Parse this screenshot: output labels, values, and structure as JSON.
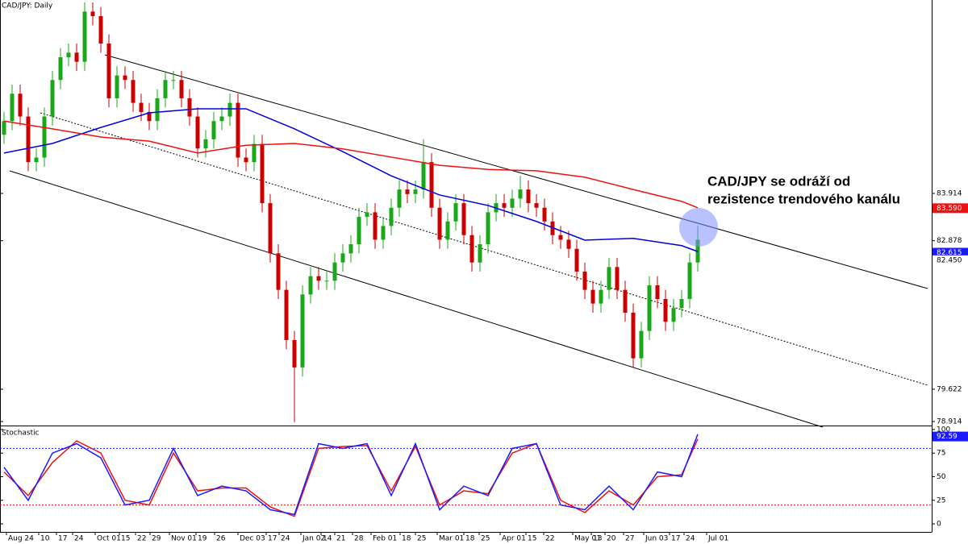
{
  "chart_data": [
    {
      "type": "candlestick",
      "title": "CAD/JPY: Daily",
      "open": [
        85.2,
        85.5,
        86.1,
        85.6,
        84.6,
        84.7,
        85.6,
        86.4,
        86.9,
        87.0,
        86.8,
        87.9,
        87.8,
        87.2,
        86.0,
        86.5,
        86.4,
        85.9,
        85.7,
        85.5,
        86.0,
        86.4,
        86.4,
        86.0,
        85.6,
        84.9,
        85.1,
        85.5,
        85.6,
        85.9,
        84.7,
        84.6,
        85.0,
        83.7,
        82.6,
        81.8,
        80.7,
        80.1,
        81.7,
        82.1,
        82.0,
        82.0,
        82.4,
        82.6,
        82.8,
        83.4,
        83.5,
        82.9,
        83.2,
        83.6,
        84.0,
        83.9,
        84.0,
        84.6,
        83.6,
        82.9,
        83.3,
        83.7,
        83.0,
        82.4,
        82.8,
        83.5,
        83.7,
        83.6,
        83.8,
        84.0,
        83.7,
        83.6,
        83.3,
        83.0,
        82.9,
        82.7,
        82.2,
        81.8,
        81.5,
        81.8,
        82.3,
        81.8,
        81.3,
        80.3,
        80.9,
        81.9,
        81.6,
        81.1,
        81.4,
        81.6,
        82.4
      ],
      "high": [
        85.7,
        86.3,
        86.3,
        85.8,
        84.9,
        85.8,
        86.6,
        87.1,
        87.2,
        87.2,
        88.1,
        88.1,
        88.0,
        87.4,
        86.7,
        86.7,
        86.6,
        86.1,
        85.9,
        86.2,
        86.6,
        86.6,
        86.6,
        86.2,
        85.8,
        85.3,
        85.7,
        85.8,
        86.1,
        86.1,
        84.9,
        85.2,
        85.2,
        83.9,
        82.8,
        82.0,
        80.9,
        81.9,
        82.3,
        82.3,
        82.2,
        82.6,
        82.8,
        83.0,
        83.6,
        83.7,
        83.7,
        83.4,
        83.8,
        84.2,
        84.2,
        84.2,
        85.1,
        84.8,
        83.8,
        83.5,
        83.9,
        83.9,
        83.2,
        83.0,
        83.7,
        83.9,
        83.9,
        84.0,
        84.3,
        84.2,
        83.9,
        83.8,
        83.5,
        83.2,
        83.1,
        82.9,
        82.4,
        82.0,
        82.0,
        82.5,
        82.5,
        82.0,
        81.5,
        81.1,
        82.1,
        82.1,
        81.8,
        81.6,
        81.8,
        82.6,
        83.2
      ],
      "low": [
        85.0,
        85.3,
        85.4,
        84.4,
        84.4,
        84.5,
        85.4,
        86.2,
        86.7,
        86.6,
        86.6,
        87.6,
        87.0,
        85.8,
        85.8,
        86.2,
        85.7,
        85.5,
        85.3,
        85.3,
        85.8,
        86.2,
        85.8,
        85.4,
        84.7,
        84.7,
        84.9,
        85.3,
        85.4,
        84.5,
        84.4,
        84.4,
        83.5,
        82.4,
        81.6,
        80.5,
        78.9,
        79.9,
        81.5,
        81.8,
        81.8,
        81.8,
        82.2,
        82.4,
        82.6,
        83.2,
        82.7,
        82.7,
        83.0,
        83.4,
        83.7,
        83.7,
        83.8,
        83.4,
        82.7,
        82.7,
        83.1,
        82.8,
        82.2,
        82.2,
        82.6,
        83.3,
        83.4,
        83.4,
        83.6,
        83.5,
        83.4,
        83.1,
        82.8,
        82.7,
        82.5,
        82.0,
        81.6,
        81.3,
        81.3,
        81.6,
        81.6,
        81.1,
        80.1,
        80.1,
        80.7,
        81.4,
        80.9,
        80.9,
        81.2,
        81.4,
        82.2
      ],
      "close": [
        85.5,
        86.1,
        85.6,
        84.6,
        84.7,
        85.6,
        86.4,
        86.9,
        87.0,
        86.8,
        87.9,
        87.8,
        87.2,
        86.0,
        86.5,
        86.4,
        85.9,
        85.7,
        85.5,
        86.0,
        86.4,
        86.4,
        86.0,
        85.6,
        84.9,
        85.1,
        85.5,
        85.6,
        85.9,
        84.7,
        84.6,
        85.0,
        83.7,
        82.6,
        81.8,
        80.7,
        80.1,
        81.7,
        82.1,
        82.0,
        82.0,
        82.4,
        82.6,
        82.8,
        83.4,
        83.5,
        82.9,
        83.2,
        83.6,
        84.0,
        83.9,
        84.0,
        84.6,
        83.6,
        82.9,
        83.3,
        83.7,
        83.0,
        82.4,
        82.8,
        83.5,
        83.7,
        83.6,
        83.8,
        84.0,
        83.7,
        83.6,
        83.3,
        83.0,
        82.9,
        82.7,
        82.2,
        81.8,
        81.5,
        81.8,
        82.3,
        81.8,
        81.3,
        80.3,
        80.9,
        81.9,
        81.6,
        81.1,
        81.4,
        81.6,
        82.4,
        82.9
      ],
      "up_color": "#1aa81a",
      "down_color": "#cc0000",
      "series": [
        {
          "color": "#0000dd",
          "x": [
            0,
            6,
            12,
            18,
            24,
            30,
            36,
            42,
            48,
            54,
            60,
            66,
            72,
            78,
            84,
            86
          ],
          "values": [
            84.8,
            85.01,
            85.36,
            85.68,
            85.77,
            85.77,
            85.33,
            84.83,
            84.3,
            83.88,
            83.65,
            83.3,
            82.89,
            82.93,
            82.77,
            82.64
          ]
        },
        {
          "color": "#ee1111",
          "x": [
            0,
            6,
            12,
            18,
            24,
            30,
            36,
            42,
            48,
            54,
            60,
            66,
            72,
            78,
            84,
            86
          ],
          "values": [
            85.5,
            85.33,
            85.15,
            85.06,
            84.8,
            84.97,
            85.01,
            84.89,
            84.71,
            84.53,
            84.44,
            84.41,
            84.27,
            84.0,
            83.74,
            83.6
          ]
        }
      ],
      "ylim": [
        78.826,
        88.154
      ],
      "yticks": [
        78.914,
        79.622,
        82.878,
        83.914
      ],
      "price_tags": [
        {
          "value": 83.59,
          "label": "83.590",
          "color": "#ee1111",
          "text_color": "#ffffff"
        },
        {
          "value": 82.615,
          "label": "82.615",
          "color": "#1a1aff",
          "text_color": "#ffffff"
        },
        {
          "value": 82.45,
          "label": "82.450",
          "color": "#ffffff",
          "text_color": "#000000"
        }
      ],
      "xticks": [
        {
          "value": 0.3,
          "label": "Aug 24"
        },
        {
          "value": 4.3,
          "label": "10"
        },
        {
          "value": 6.5,
          "label": "17"
        },
        {
          "value": 8.5,
          "label": "24"
        },
        {
          "value": 11.3,
          "label": "Oct 01"
        },
        {
          "value": 14.3,
          "label": "15"
        },
        {
          "value": 16.3,
          "label": "22"
        },
        {
          "value": 18.1,
          "label": "29"
        },
        {
          "value": 20.5,
          "label": "Nov 01"
        },
        {
          "value": 23.8,
          "label": "19"
        },
        {
          "value": 26.1,
          "label": "26"
        },
        {
          "value": 29,
          "label": "Dec 03"
        },
        {
          "value": 32.5,
          "label": "17"
        },
        {
          "value": 34.1,
          "label": "24"
        },
        {
          "value": 36.8,
          "label": "Jan 02"
        },
        {
          "value": 39.3,
          "label": "14"
        },
        {
          "value": 41,
          "label": "21"
        },
        {
          "value": 43.2,
          "label": "28"
        },
        {
          "value": 45.5,
          "label": "Feb 01"
        },
        {
          "value": 49.1,
          "label": "18"
        },
        {
          "value": 51,
          "label": "25"
        },
        {
          "value": 53.7,
          "label": "Mar 01"
        },
        {
          "value": 57,
          "label": "18"
        },
        {
          "value": 58.9,
          "label": "25"
        },
        {
          "value": 61.5,
          "label": "Apr 01"
        },
        {
          "value": 64.7,
          "label": "15"
        },
        {
          "value": 66.9,
          "label": "22"
        },
        {
          "value": 70.5,
          "label": "May 01"
        },
        {
          "value": 72.8,
          "label": "13"
        },
        {
          "value": 74.5,
          "label": "20"
        },
        {
          "value": 76.8,
          "label": "27"
        },
        {
          "value": 79.3,
          "label": "Jun 03"
        },
        {
          "value": 82.5,
          "label": "17"
        },
        {
          "value": 84.3,
          "label": "24"
        },
        {
          "value": 87.1,
          "label": "Jul 01"
        }
      ],
      "annotation": [
        "CAD/JPY se odráží od",
        "rezistence trendového kanálu"
      ]
    },
    {
      "type": "line",
      "title": "Stochastic",
      "series": [
        {
          "color": "#ee1111",
          "x": [
            0,
            3,
            6,
            9,
            12,
            15,
            18,
            21,
            24,
            27,
            30,
            33,
            36,
            39,
            42,
            45,
            48,
            51,
            54,
            57,
            60,
            63,
            66,
            69,
            72,
            75,
            78,
            81,
            84,
            86
          ],
          "values": [
            55,
            30,
            65,
            88,
            75,
            25,
            20,
            75,
            35,
            38,
            38,
            18,
            8,
            80,
            82,
            83,
            35,
            82,
            20,
            35,
            32,
            75,
            85,
            25,
            12,
            35,
            20,
            50,
            52,
            90
          ]
        },
        {
          "color": "#1a1aff",
          "x": [
            0,
            3,
            6,
            9,
            12,
            15,
            18,
            21,
            24,
            27,
            30,
            33,
            36,
            39,
            42,
            45,
            48,
            51,
            54,
            57,
            60,
            63,
            66,
            69,
            72,
            75,
            78,
            81,
            84,
            86
          ],
          "values": [
            60,
            25,
            75,
            85,
            70,
            20,
            25,
            80,
            30,
            40,
            35,
            15,
            10,
            85,
            80,
            85,
            30,
            85,
            15,
            40,
            30,
            80,
            85,
            20,
            15,
            40,
            15,
            55,
            50,
            95
          ]
        }
      ],
      "ylim": [
        -8.5,
        102.5
      ],
      "yticks": [
        0,
        25,
        50,
        75,
        100
      ],
      "levels": [
        {
          "value": 80,
          "color": "#1a1aff"
        },
        {
          "value": 20,
          "color": "#ee1111"
        }
      ],
      "price_tags": [
        {
          "value": 92.59,
          "color": "#1a1aff",
          "text_color": "#ffffff"
        }
      ]
    }
  ]
}
